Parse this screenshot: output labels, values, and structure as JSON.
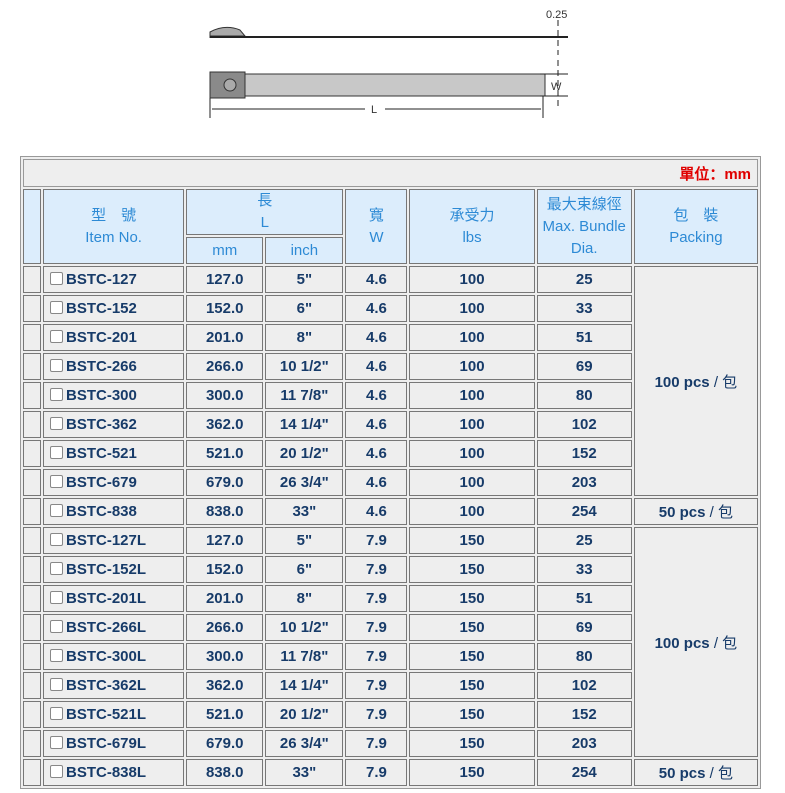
{
  "diagram": {
    "thickness_label": "0.25",
    "width_label": "W",
    "length_label": "L"
  },
  "table": {
    "unit_label": "單位：mm",
    "headers": {
      "item_cn": "型　號",
      "item_en": "Item No.",
      "length_cn": "長",
      "length_en": "L",
      "mm": "mm",
      "inch": "inch",
      "width_cn": "寬",
      "width_en": "W",
      "force_cn": "承受力",
      "force_en": "lbs",
      "bundle_cn": "最大束線徑",
      "bundle_en1": "Max. Bundle",
      "bundle_en2": "Dia.",
      "pack_cn": "包　裝",
      "pack_en": "Packing"
    },
    "packing": [
      {
        "qty": "100 pcs",
        "unit": "/ 包"
      },
      {
        "qty": "50 pcs",
        "unit": "/ 包"
      },
      {
        "qty": "100 pcs",
        "unit": "/ 包"
      },
      {
        "qty": "50 pcs",
        "unit": "/ 包"
      }
    ],
    "rows": [
      {
        "item": "BSTC-127",
        "mm": "127.0",
        "inch": "5\"",
        "w": "4.6",
        "lbs": "100",
        "dia": "25"
      },
      {
        "item": "BSTC-152",
        "mm": "152.0",
        "inch": "6\"",
        "w": "4.6",
        "lbs": "100",
        "dia": "33"
      },
      {
        "item": "BSTC-201",
        "mm": "201.0",
        "inch": "8\"",
        "w": "4.6",
        "lbs": "100",
        "dia": "51"
      },
      {
        "item": "BSTC-266",
        "mm": "266.0",
        "inch": "10 1/2\"",
        "w": "4.6",
        "lbs": "100",
        "dia": "69"
      },
      {
        "item": "BSTC-300",
        "mm": "300.0",
        "inch": "11 7/8\"",
        "w": "4.6",
        "lbs": "100",
        "dia": "80"
      },
      {
        "item": "BSTC-362",
        "mm": "362.0",
        "inch": "14 1/4\"",
        "w": "4.6",
        "lbs": "100",
        "dia": "102"
      },
      {
        "item": "BSTC-521",
        "mm": "521.0",
        "inch": "20 1/2\"",
        "w": "4.6",
        "lbs": "100",
        "dia": "152"
      },
      {
        "item": "BSTC-679",
        "mm": "679.0",
        "inch": "26 3/4\"",
        "w": "4.6",
        "lbs": "100",
        "dia": "203"
      },
      {
        "item": "BSTC-838",
        "mm": "838.0",
        "inch": "33\"",
        "w": "4.6",
        "lbs": "100",
        "dia": "254"
      },
      {
        "item": "BSTC-127L",
        "mm": "127.0",
        "inch": "5\"",
        "w": "7.9",
        "lbs": "150",
        "dia": "25"
      },
      {
        "item": "BSTC-152L",
        "mm": "152.0",
        "inch": "6\"",
        "w": "7.9",
        "lbs": "150",
        "dia": "33"
      },
      {
        "item": "BSTC-201L",
        "mm": "201.0",
        "inch": "8\"",
        "w": "7.9",
        "lbs": "150",
        "dia": "51"
      },
      {
        "item": "BSTC-266L",
        "mm": "266.0",
        "inch": "10 1/2\"",
        "w": "7.9",
        "lbs": "150",
        "dia": "69"
      },
      {
        "item": "BSTC-300L",
        "mm": "300.0",
        "inch": "11 7/8\"",
        "w": "7.9",
        "lbs": "150",
        "dia": "80"
      },
      {
        "item": "BSTC-362L",
        "mm": "362.0",
        "inch": "14 1/4\"",
        "w": "7.9",
        "lbs": "150",
        "dia": "102"
      },
      {
        "item": "BSTC-521L",
        "mm": "521.0",
        "inch": "20 1/2\"",
        "w": "7.9",
        "lbs": "150",
        "dia": "152"
      },
      {
        "item": "BSTC-679L",
        "mm": "679.0",
        "inch": "26 3/4\"",
        "w": "7.9",
        "lbs": "150",
        "dia": "203"
      },
      {
        "item": "BSTC-838L",
        "mm": "838.0",
        "inch": "33\"",
        "w": "7.9",
        "lbs": "150",
        "dia": "254"
      }
    ]
  }
}
